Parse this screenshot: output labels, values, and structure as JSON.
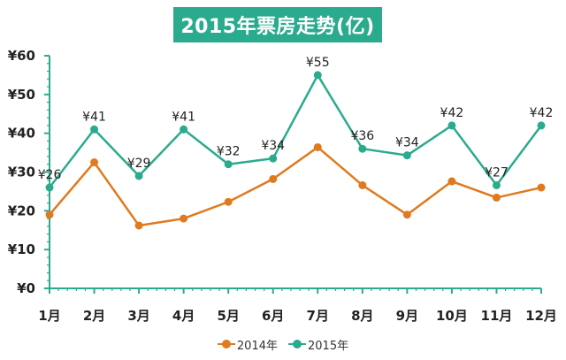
{
  "chart_data": {
    "type": "line",
    "title": "2015年票房走势(亿)",
    "categories": [
      "1月",
      "2月",
      "3月",
      "4月",
      "5月",
      "6月",
      "7月",
      "8月",
      "9月",
      "10月",
      "11月",
      "12月"
    ],
    "ylim": [
      0,
      60
    ],
    "yticks": [
      0,
      10,
      20,
      30,
      40,
      50,
      60
    ],
    "ytick_labels": [
      "¥0",
      "¥10",
      "¥20",
      "¥30",
      "¥40",
      "¥50",
      "¥60"
    ],
    "xlabel": "",
    "ylabel": "",
    "series": [
      {
        "name": "2014年",
        "color": "#e07a1f",
        "values": [
          19,
          32.5,
          16.2,
          18,
          22.3,
          28.2,
          36.4,
          26.6,
          19,
          27.6,
          23.4,
          26
        ]
      },
      {
        "name": "2015年",
        "color": "#2bab8e",
        "values": [
          26,
          41,
          29,
          41,
          32,
          33.5,
          55,
          36,
          34.3,
          42,
          26.6,
          42
        ],
        "data_labels": [
          "¥26",
          "¥41",
          "¥29",
          "¥41",
          "¥32",
          "¥34",
          "¥55",
          "¥36",
          "¥34",
          "¥42",
          "¥27",
          "¥42"
        ]
      }
    ],
    "legend_position": "bottom",
    "grid": false
  }
}
